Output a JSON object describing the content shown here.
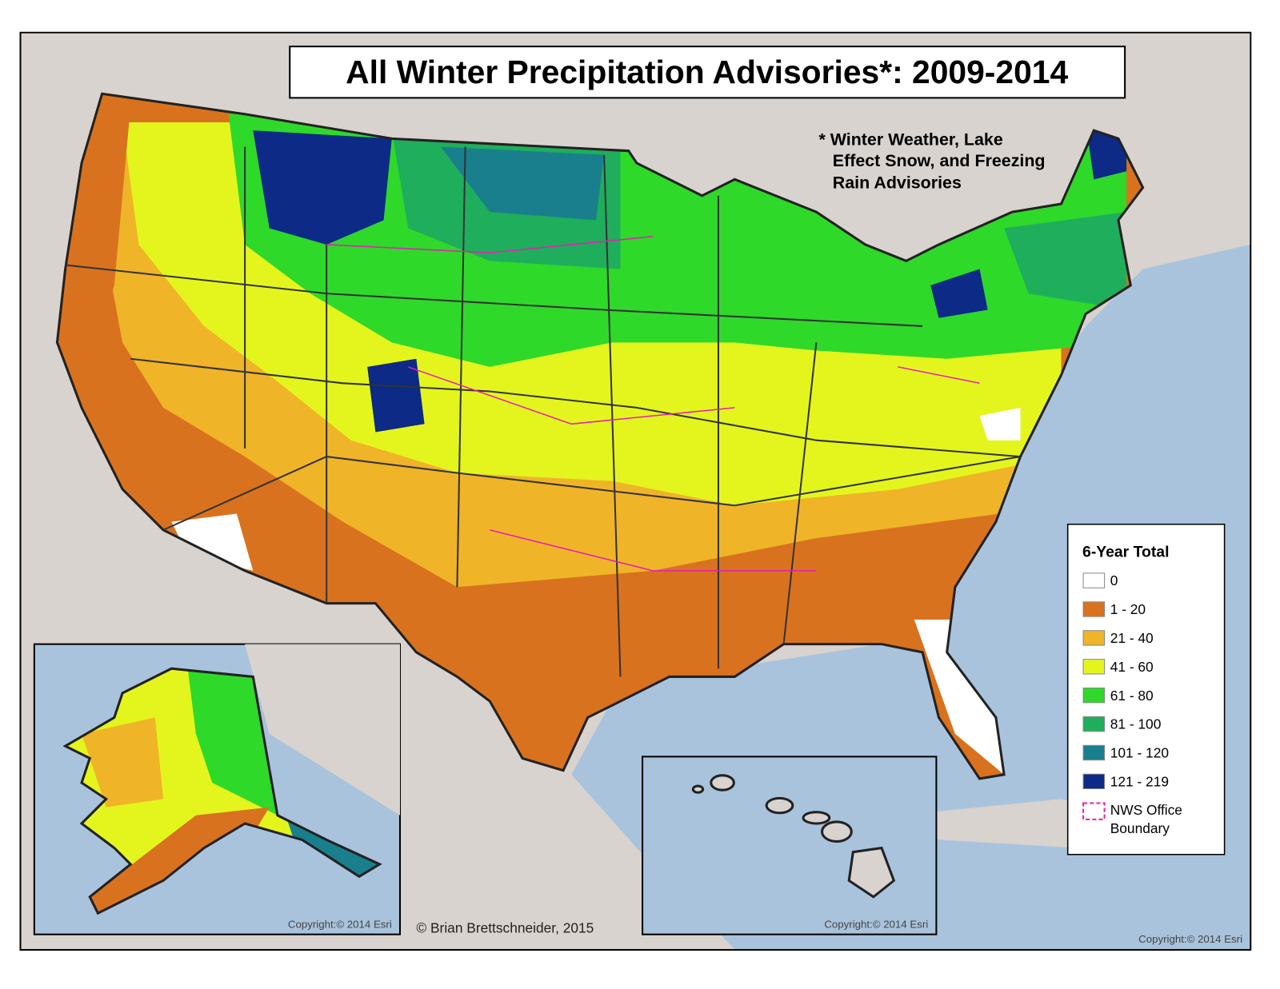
{
  "title": "All Winter Precipitation Advisories*: 2009-2014",
  "note": [
    "* Winter Weather, Lake",
    "Effect Snow, and Freezing",
    "Rain Advisories"
  ],
  "legend": {
    "title": "6-Year Total",
    "items": [
      {
        "label": "0",
        "color": "#ffffff"
      },
      {
        "label": "1 - 20",
        "color": "#d9721e"
      },
      {
        "label": "21 - 40",
        "color": "#f0b428"
      },
      {
        "label": "41 - 60",
        "color": "#e4f51e"
      },
      {
        "label": "61 - 80",
        "color": "#2ed92a"
      },
      {
        "label": "81 - 100",
        "color": "#1fae5c"
      },
      {
        "label": "101 - 120",
        "color": "#1a7f8c"
      },
      {
        "label": "121 - 219",
        "color": "#0c2a86"
      }
    ],
    "boundary": {
      "label": [
        "NWS Office",
        "Boundary"
      ],
      "color": "#e61eb4"
    }
  },
  "credit": "© Brian Brettschneider, 2015",
  "copyrights": [
    "Copyright:© 2014 Esri",
    "Copyright:© 2014 Esri",
    "Copyright:© 2014 Esri"
  ]
}
